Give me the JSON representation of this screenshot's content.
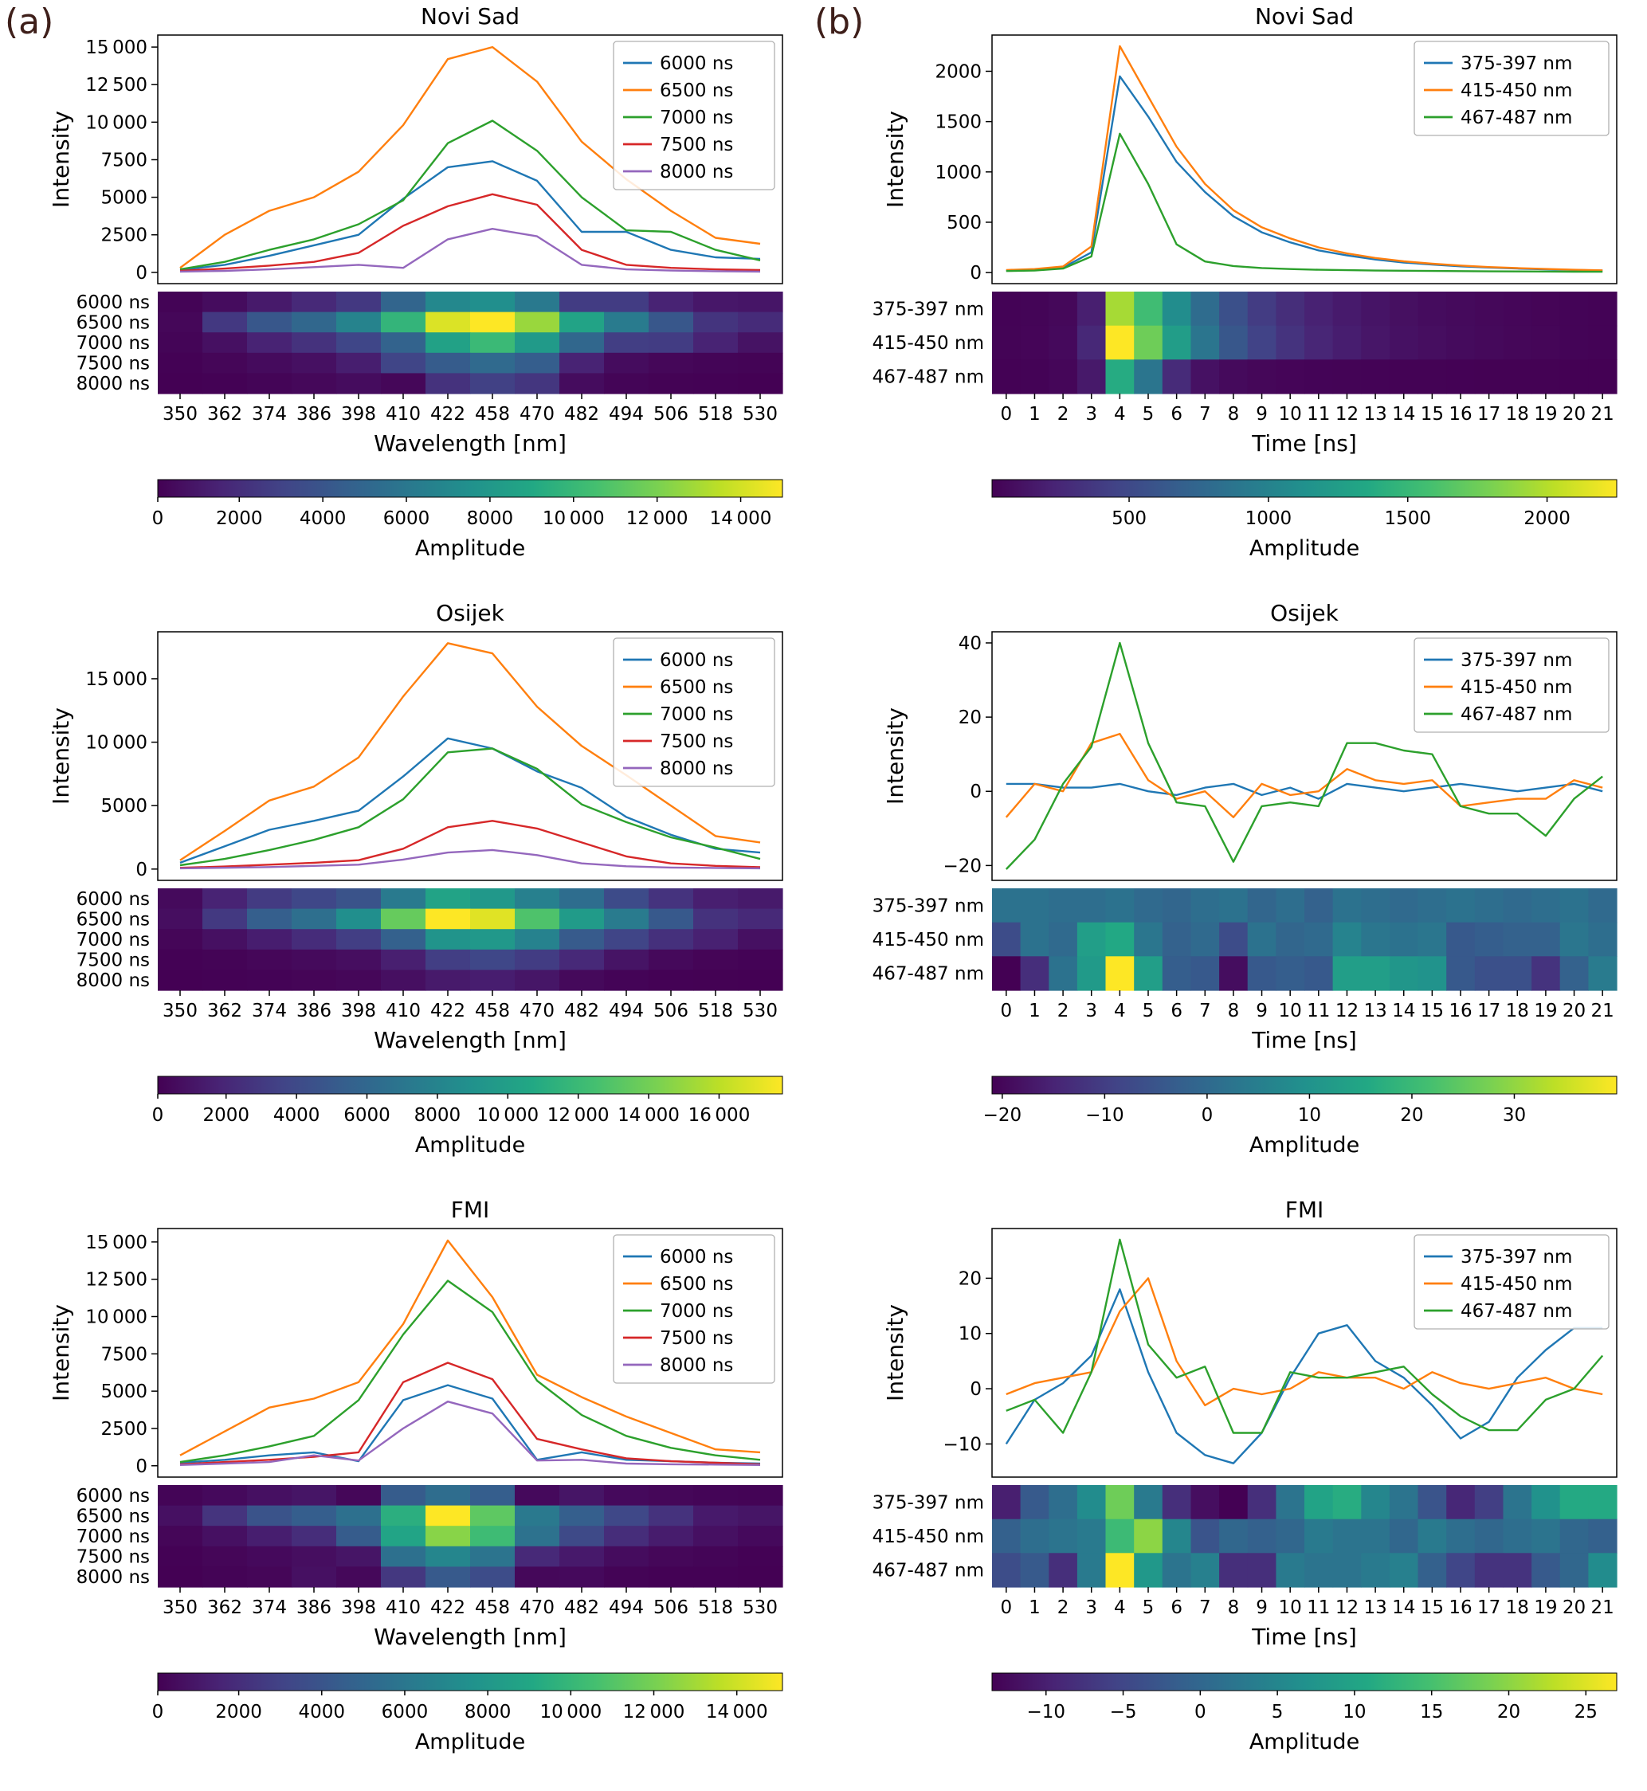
{
  "figure": {
    "panel_a_label": "(a)",
    "panel_b_label": "(b)",
    "label_color": "#3e1f1a",
    "background": "#ffffff"
  },
  "colors": {
    "series_palette": [
      "#1f77b4",
      "#ff7f0e",
      "#2ca02c",
      "#d62728",
      "#9467bd"
    ],
    "axis_color": "#000000",
    "legend_border": "#b0b0b0"
  },
  "chart_data": [
    {
      "id": "a-novisad",
      "column": "a",
      "title": "Novi Sad",
      "type": "line",
      "xlabel": "Wavelength [nm]",
      "ylabel": "Intensity",
      "categories": [
        350,
        362,
        374,
        386,
        398,
        410,
        422,
        458,
        470,
        482,
        494,
        506,
        518,
        530
      ],
      "ylim": [
        -750,
        15800
      ],
      "yticks": [
        0,
        2500,
        5000,
        7500,
        10000,
        12500,
        15000
      ],
      "series": [
        {
          "name": "6000 ns",
          "values": [
            150,
            500,
            1100,
            1800,
            2500,
            4900,
            7000,
            7400,
            6100,
            2700,
            2700,
            1500,
            1000,
            900
          ]
        },
        {
          "name": "6500 ns",
          "values": [
            300,
            2500,
            4100,
            5000,
            6700,
            9800,
            14200,
            15000,
            12700,
            8700,
            6200,
            4100,
            2300,
            1900
          ]
        },
        {
          "name": "7000 ns",
          "values": [
            200,
            700,
            1500,
            2200,
            3200,
            4800,
            8600,
            10100,
            8100,
            5000,
            2800,
            2700,
            1500,
            800
          ]
        },
        {
          "name": "7500 ns",
          "values": [
            100,
            250,
            450,
            700,
            1300,
            3100,
            4400,
            5200,
            4500,
            1500,
            500,
            300,
            200,
            150
          ]
        },
        {
          "name": "8000 ns",
          "values": [
            50,
            100,
            200,
            350,
            500,
            300,
            2200,
            2900,
            2400,
            500,
            200,
            120,
            80,
            50
          ]
        }
      ],
      "heatmap_rows": [
        "6000 ns",
        "6500 ns",
        "7000 ns",
        "7500 ns",
        "8000 ns"
      ],
      "colorbar": {
        "label": "Amplitude",
        "ticks": [
          0,
          2000,
          4000,
          6000,
          8000,
          10000,
          12000,
          14000
        ]
      }
    },
    {
      "id": "b-novisad",
      "column": "b",
      "title": "Novi Sad",
      "type": "line",
      "xlabel": "Time [ns]",
      "ylabel": "Intensity",
      "categories": [
        0,
        1,
        2,
        3,
        4,
        5,
        6,
        7,
        8,
        9,
        10,
        11,
        12,
        13,
        14,
        15,
        16,
        17,
        18,
        19,
        20,
        21
      ],
      "ylim": [
        -110,
        2360
      ],
      "yticks": [
        0,
        500,
        1000,
        1500,
        2000
      ],
      "series": [
        {
          "name": "375-397 nm",
          "values": [
            20,
            30,
            50,
            200,
            1950,
            1550,
            1100,
            800,
            560,
            400,
            300,
            220,
            170,
            130,
            100,
            80,
            62,
            50,
            40,
            32,
            26,
            20
          ]
        },
        {
          "name": "415-450 nm",
          "values": [
            25,
            35,
            60,
            260,
            2250,
            1750,
            1250,
            880,
            620,
            450,
            340,
            250,
            190,
            145,
            112,
            88,
            70,
            55,
            44,
            36,
            28,
            22
          ]
        },
        {
          "name": "467-487 nm",
          "values": [
            15,
            20,
            40,
            160,
            1380,
            880,
            280,
            110,
            65,
            45,
            35,
            28,
            24,
            20,
            18,
            16,
            14,
            12,
            11,
            10,
            9,
            8
          ]
        }
      ],
      "heatmap_rows": [
        "375-397 nm",
        "415-450 nm",
        "467-487 nm"
      ],
      "colorbar": {
        "label": "Amplitude",
        "ticks": [
          500,
          1000,
          1500,
          2000
        ]
      }
    },
    {
      "id": "a-osijek",
      "column": "a",
      "title": "Osijek",
      "type": "line",
      "xlabel": "Wavelength [nm]",
      "ylabel": "Intensity",
      "categories": [
        350,
        362,
        374,
        386,
        398,
        410,
        422,
        458,
        470,
        482,
        494,
        506,
        518,
        530
      ],
      "ylim": [
        -890,
        18700
      ],
      "yticks": [
        0,
        5000,
        10000,
        15000
      ],
      "series": [
        {
          "name": "6000 ns",
          "values": [
            500,
            1800,
            3100,
            3800,
            4600,
            7300,
            10300,
            9500,
            7700,
            6400,
            4100,
            2700,
            1600,
            1300
          ]
        },
        {
          "name": "6500 ns",
          "values": [
            700,
            3000,
            5400,
            6500,
            8800,
            13600,
            17800,
            17000,
            12800,
            9700,
            7400,
            5000,
            2600,
            2100
          ]
        },
        {
          "name": "7000 ns",
          "values": [
            300,
            800,
            1500,
            2300,
            3300,
            5500,
            9200,
            9500,
            7900,
            5100,
            3700,
            2500,
            1700,
            800
          ]
        },
        {
          "name": "7500 ns",
          "values": [
            100,
            200,
            350,
            500,
            700,
            1600,
            3300,
            3800,
            3200,
            2100,
            1000,
            450,
            250,
            150
          ]
        },
        {
          "name": "8000 ns",
          "values": [
            60,
            100,
            160,
            250,
            350,
            750,
            1300,
            1500,
            1100,
            450,
            220,
            120,
            90,
            60
          ]
        }
      ],
      "heatmap_rows": [
        "6000 ns",
        "6500 ns",
        "7000 ns",
        "7500 ns",
        "8000 ns"
      ],
      "colorbar": {
        "label": "Amplitude",
        "ticks": [
          0,
          2000,
          4000,
          6000,
          8000,
          10000,
          12000,
          14000,
          16000
        ]
      }
    },
    {
      "id": "b-osijek",
      "column": "b",
      "title": "Osijek",
      "type": "line",
      "xlabel": "Time [ns]",
      "ylabel": "Intensity",
      "categories": [
        0,
        1,
        2,
        3,
        4,
        5,
        6,
        7,
        8,
        9,
        10,
        11,
        12,
        13,
        14,
        15,
        16,
        17,
        18,
        19,
        20,
        21
      ],
      "ylim": [
        -24,
        43
      ],
      "yticks": [
        -20,
        0,
        20,
        40
      ],
      "series": [
        {
          "name": "375-397 nm",
          "values": [
            2,
            2,
            1,
            1,
            2,
            0,
            -1,
            1,
            2,
            -1,
            1,
            -2,
            2,
            1,
            0,
            1,
            2,
            1,
            0,
            1,
            2,
            0
          ]
        },
        {
          "name": "415-450 nm",
          "values": [
            -7,
            2,
            0,
            13,
            15.5,
            3,
            -2,
            0,
            -7,
            2,
            -1,
            0,
            6,
            3,
            2,
            3,
            -4,
            -3,
            -2,
            -2,
            3,
            1
          ]
        },
        {
          "name": "467-487 nm",
          "values": [
            -21,
            -13,
            2,
            12,
            40,
            13,
            -3,
            -4,
            -19,
            -4,
            -3,
            -4,
            13,
            13,
            11,
            10,
            -4,
            -6,
            -6,
            -12,
            -2,
            4
          ]
        }
      ],
      "heatmap_rows": [
        "375-397 nm",
        "415-450 nm",
        "467-487 nm"
      ],
      "colorbar": {
        "label": "Amplitude",
        "ticks": [
          -20,
          -10,
          0,
          10,
          20,
          30
        ]
      }
    },
    {
      "id": "a-fmi",
      "column": "a",
      "title": "FMI",
      "type": "line",
      "xlabel": "Wavelength [nm]",
      "ylabel": "Intensity",
      "categories": [
        350,
        362,
        374,
        386,
        398,
        410,
        422,
        458,
        470,
        482,
        494,
        506,
        518,
        530
      ],
      "ylim": [
        -760,
        15900
      ],
      "yticks": [
        0,
        2500,
        5000,
        7500,
        10000,
        12500,
        15000
      ],
      "series": [
        {
          "name": "6000 ns",
          "values": [
            200,
            400,
            700,
            900,
            300,
            4400,
            5400,
            4500,
            400,
            900,
            400,
            300,
            200,
            150
          ]
        },
        {
          "name": "6500 ns",
          "values": [
            700,
            2300,
            3900,
            4500,
            5600,
            9500,
            15100,
            11300,
            6100,
            4600,
            3300,
            2200,
            1100,
            900
          ]
        },
        {
          "name": "7000 ns",
          "values": [
            250,
            700,
            1300,
            2000,
            4400,
            8800,
            12400,
            10300,
            5700,
            3400,
            2000,
            1200,
            700,
            400
          ]
        },
        {
          "name": "7500 ns",
          "values": [
            100,
            250,
            400,
            600,
            900,
            5600,
            6900,
            5800,
            1800,
            1100,
            500,
            300,
            200,
            100
          ]
        },
        {
          "name": "8000 ns",
          "values": [
            50,
            150,
            250,
            700,
            350,
            2500,
            4300,
            3500,
            350,
            400,
            150,
            100,
            80,
            50
          ]
        }
      ],
      "heatmap_rows": [
        "6000 ns",
        "6500 ns",
        "7000 ns",
        "7500 ns",
        "8000 ns"
      ],
      "colorbar": {
        "label": "Amplitude",
        "ticks": [
          0,
          2000,
          4000,
          6000,
          8000,
          10000,
          12000,
          14000
        ]
      }
    },
    {
      "id": "b-fmi",
      "column": "b",
      "title": "FMI",
      "type": "line",
      "xlabel": "Time [ns]",
      "ylabel": "Intensity",
      "categories": [
        0,
        1,
        2,
        3,
        4,
        5,
        6,
        7,
        8,
        9,
        10,
        11,
        12,
        13,
        14,
        15,
        16,
        17,
        18,
        19,
        20,
        21
      ],
      "ylim": [
        -16,
        29
      ],
      "yticks": [
        -10,
        0,
        10,
        20
      ],
      "series": [
        {
          "name": "375-397 nm",
          "values": [
            -10,
            -2,
            1,
            6,
            18,
            3,
            -8,
            -12,
            -13.5,
            -8,
            2,
            10,
            11.5,
            5,
            2,
            -3,
            -9,
            -6,
            2,
            7,
            11,
            11
          ]
        },
        {
          "name": "415-450 nm",
          "values": [
            -1,
            1,
            2,
            3,
            14,
            20,
            5,
            -3,
            0,
            -1,
            0,
            3,
            2,
            2,
            0,
            3,
            1,
            0,
            1,
            2,
            0,
            -1
          ]
        },
        {
          "name": "467-487 nm",
          "values": [
            -4,
            -2,
            -8,
            3,
            27,
            8,
            2,
            4,
            -8,
            -8,
            3,
            2,
            2,
            3,
            4,
            -1,
            -5,
            -7.5,
            -7.5,
            -2,
            0,
            6
          ]
        }
      ],
      "heatmap_rows": [
        "375-397 nm",
        "415-450 nm",
        "467-487 nm"
      ],
      "colorbar": {
        "label": "Amplitude",
        "ticks": [
          -10,
          -5,
          0,
          5,
          10,
          15,
          20,
          25
        ]
      }
    }
  ]
}
